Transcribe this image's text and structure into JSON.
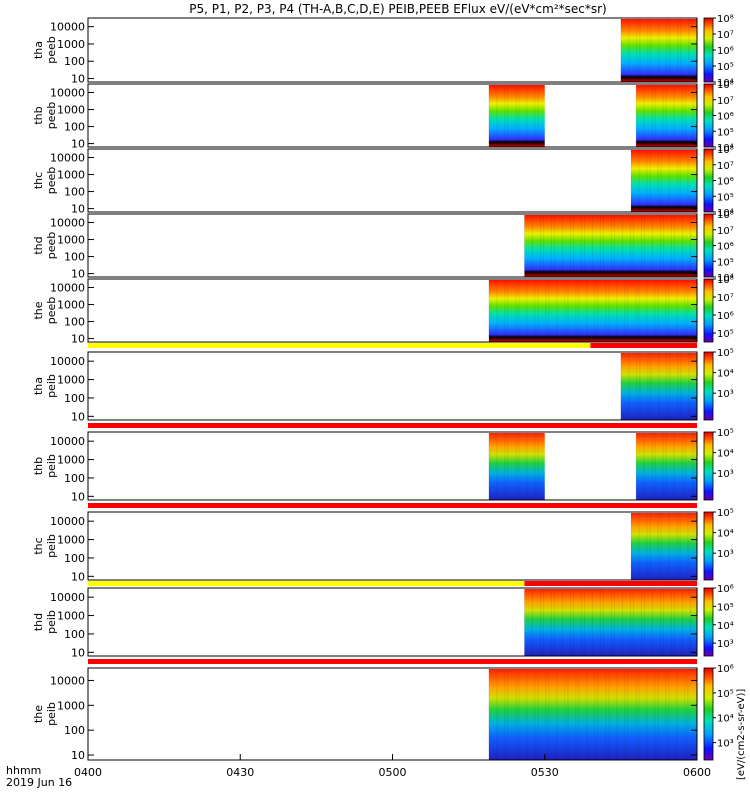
{
  "title": "P5, P1, P2, P3, P4 (TH-A,B,C,D,E) PEIB,PEEB EFlux eV/(eV*cm²*sec*sr)",
  "footer": {
    "label1": "hhmm",
    "label2": "2019 Jun 16"
  },
  "x_ticks": [
    "0400",
    "0430",
    "0500",
    "0530",
    "0600"
  ],
  "colorbar_unit": "[eV/(cm2-s-sr-eV)]",
  "chart_data": {
    "type": "heatmap",
    "x_range": [
      "04:00",
      "06:00"
    ],
    "y_scale": "log",
    "y_ticks": [
      "10",
      "100",
      "1000",
      "10000"
    ],
    "panels": [
      {
        "line1": "tha",
        "line2": "peeb",
        "coverage": [
          [
            "05:45",
            "06:00"
          ]
        ],
        "cbar": [
          "10⁸",
          "10⁷",
          "10⁶",
          "10⁵",
          "10⁴"
        ],
        "cbar_min": 4,
        "cbar_max": 8,
        "stripe": null
      },
      {
        "line1": "thb",
        "line2": "peeb",
        "coverage": [
          [
            "05:19",
            "05:30"
          ],
          [
            "05:48",
            "06:00"
          ]
        ],
        "cbar": [
          "10⁸",
          "10⁷",
          "10⁶",
          "10⁵",
          "10⁴"
        ],
        "cbar_min": 4,
        "cbar_max": 8,
        "stripe": null
      },
      {
        "line1": "thc",
        "line2": "peeb",
        "coverage": [
          [
            "05:47",
            "06:00"
          ]
        ],
        "cbar": [
          "10⁸",
          "10⁷",
          "10⁶",
          "10⁵",
          "10⁴"
        ],
        "cbar_min": 4,
        "cbar_max": 8,
        "stripe": null
      },
      {
        "line1": "thd",
        "line2": "peeb",
        "coverage": [
          [
            "05:26",
            "06:00"
          ]
        ],
        "cbar": [
          "10⁸",
          "10⁷",
          "10⁶",
          "10⁵",
          "10⁴"
        ],
        "cbar_min": 4,
        "cbar_max": 8,
        "stripe": null
      },
      {
        "line1": "the",
        "line2": "peeb",
        "coverage": [
          [
            "05:19",
            "06:00"
          ]
        ],
        "cbar": [
          "10⁸",
          "10⁷",
          "10⁶",
          "10⁵"
        ],
        "cbar_min": 4.5,
        "cbar_max": 8,
        "stripe": {
          "split": "05:39",
          "left": "#ffff00",
          "right": "#ff0000"
        }
      },
      {
        "line1": "tha",
        "line2": "peib",
        "coverage": [
          [
            "05:45",
            "06:00"
          ]
        ],
        "cbar": [
          "10⁵",
          "10⁴",
          "10³"
        ],
        "cbar_min": 2.5,
        "cbar_max": 5.8,
        "stripe": {
          "split": null,
          "left": "#ff0000",
          "right": "#ff0000"
        }
      },
      {
        "line1": "thb",
        "line2": "peib",
        "coverage": [
          [
            "05:19",
            "05:30"
          ],
          [
            "05:48",
            "06:00"
          ]
        ],
        "cbar": [
          "10⁵",
          "10⁴",
          "10³"
        ],
        "cbar_min": 2.5,
        "cbar_max": 5.8,
        "stripe": {
          "split": null,
          "left": "#ff0000",
          "right": "#ff0000"
        }
      },
      {
        "line1": "thc",
        "line2": "peib",
        "coverage": [
          [
            "05:47",
            "06:00"
          ]
        ],
        "cbar": [
          "10⁵",
          "10⁴",
          "10³"
        ],
        "cbar_min": 2.5,
        "cbar_max": 5.8,
        "stripe": {
          "split": "05:26",
          "left": "#ffff00",
          "right": "#ff0000"
        }
      },
      {
        "line1": "thd",
        "line2": "peib",
        "coverage": [
          [
            "05:26",
            "06:00"
          ]
        ],
        "cbar": [
          "10⁶",
          "10⁵",
          "10⁴",
          "10³"
        ],
        "cbar_min": 2.5,
        "cbar_max": 6.2,
        "stripe": {
          "split": null,
          "left": "#ff0000",
          "right": "#ff0000"
        }
      },
      {
        "line1": "the",
        "line2": "peib",
        "coverage": [
          [
            "05:19",
            "06:00"
          ]
        ],
        "cbar": [
          "10⁶",
          "10⁵",
          "10⁴",
          "10³"
        ],
        "cbar_min": 2.5,
        "cbar_max": 6.2,
        "stripe": null
      }
    ]
  }
}
